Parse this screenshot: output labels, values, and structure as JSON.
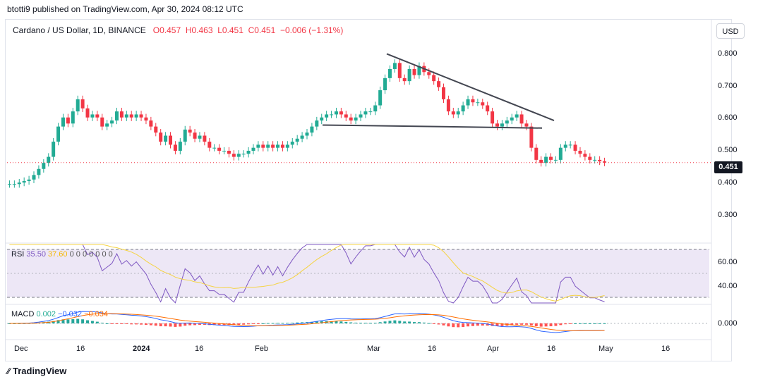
{
  "header": {
    "published_by": "btotti9 published on TradingView.com, Apr 30, 2024 08:12 UTC"
  },
  "legend": {
    "symbol": "Cardano / US Dollar, 1D, BINANCE",
    "open": "O0.457",
    "high": "H0.463",
    "low": "L0.451",
    "close": "C0.451",
    "change": "−0.006 (−1.31%)"
  },
  "currency_button": "USD",
  "price_axis": [
    "0.800",
    "0.700",
    "0.600",
    "0.500",
    "0.400",
    "0.300"
  ],
  "last_price": "0.451",
  "rsi": {
    "label": "RSI",
    "v1": "35.50",
    "v2": "37.60",
    "extra": "0 0 0 0 0 0 0",
    "axis": [
      "60.00",
      "40.00"
    ]
  },
  "macd": {
    "label": "MACD",
    "v1": "0.002",
    "v2": "−0.032",
    "v3": "−0.034",
    "axis": [
      "0.000"
    ]
  },
  "time_axis": [
    "Dec",
    "16",
    "2024",
    "16",
    "Feb",
    "Mar",
    "16",
    "Apr",
    "16",
    "May",
    "16"
  ],
  "brand": "TradingView",
  "colors": {
    "up": "#22ab94",
    "down": "#f23645",
    "rsi": "#7e57c2",
    "rsi_ma": "#f5d340",
    "rsi_band": "#ede7f6"
  },
  "chart_data": {
    "type": "candlestick",
    "title": "Cardano / US Dollar, 1D, BINANCE",
    "ylim": [
      0.22,
      0.86
    ],
    "close_series": [
      0.38,
      0.38,
      0.385,
      0.39,
      0.395,
      0.41,
      0.43,
      0.45,
      0.47,
      0.52,
      0.57,
      0.6,
      0.58,
      0.62,
      0.66,
      0.63,
      0.6,
      0.61,
      0.6,
      0.57,
      0.58,
      0.59,
      0.62,
      0.6,
      0.61,
      0.6,
      0.61,
      0.6,
      0.59,
      0.57,
      0.55,
      0.52,
      0.54,
      0.51,
      0.49,
      0.52,
      0.56,
      0.55,
      0.53,
      0.54,
      0.52,
      0.5,
      0.5,
      0.49,
      0.49,
      0.48,
      0.47,
      0.48,
      0.48,
      0.49,
      0.5,
      0.51,
      0.5,
      0.51,
      0.5,
      0.51,
      0.5,
      0.51,
      0.52,
      0.53,
      0.54,
      0.55,
      0.57,
      0.59,
      0.6,
      0.61,
      0.61,
      0.62,
      0.61,
      0.6,
      0.59,
      0.6,
      0.61,
      0.62,
      0.62,
      0.64,
      0.69,
      0.73,
      0.76,
      0.78,
      0.73,
      0.72,
      0.76,
      0.74,
      0.77,
      0.75,
      0.74,
      0.72,
      0.7,
      0.66,
      0.62,
      0.61,
      0.62,
      0.64,
      0.66,
      0.65,
      0.65,
      0.64,
      0.62,
      0.58,
      0.57,
      0.58,
      0.59,
      0.6,
      0.61,
      0.58,
      0.57,
      0.5,
      0.46,
      0.45,
      0.47,
      0.46,
      0.46,
      0.5,
      0.51,
      0.51,
      0.49,
      0.48,
      0.47,
      0.46,
      0.46,
      0.455,
      0.451
    ],
    "rsi_band": [
      30,
      70
    ],
    "macd_zero": 0.0,
    "x_labels": [
      "Dec",
      "16",
      "2024",
      "16",
      "Feb",
      "Mar",
      "16",
      "Apr",
      "16",
      "May",
      "16"
    ]
  }
}
